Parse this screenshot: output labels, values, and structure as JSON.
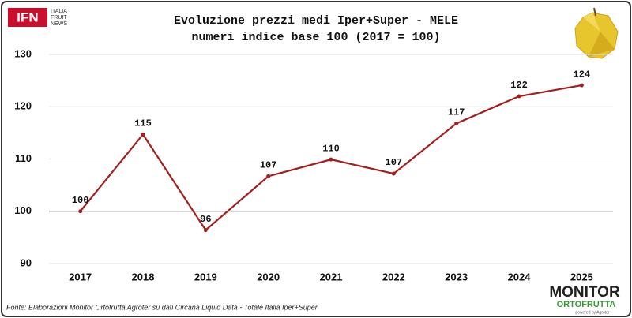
{
  "chart_data": {
    "type": "line",
    "title": "Evoluzione prezzi medi Iper+Super - MELE",
    "subtitle": "numeri indice base 100 (2017 = 100)",
    "categories": [
      "2017",
      "2018",
      "2019",
      "2020",
      "2021",
      "2022",
      "2023",
      "2024",
      "2025"
    ],
    "series": [
      {
        "name": "MELE",
        "color": "#a31f1f",
        "values": [
          100,
          114.7,
          96.4,
          106.7,
          109.9,
          107.2,
          116.8,
          122,
          124.1
        ],
        "value_labels": [
          "100",
          "115",
          "96",
          "107",
          "110",
          "107",
          "117",
          "122",
          "124"
        ]
      }
    ],
    "ylim": [
      90,
      130
    ],
    "yticks": [
      90,
      100,
      110,
      120,
      130
    ],
    "grid": true,
    "baseline": 100,
    "source": "Fonte: Elaborazioni Monitor Ortofrutta Agroter su dati Circana Liquid Data - Totale Italia Iper+Super"
  },
  "logos": {
    "ifn": "IFN",
    "ifn_lines": [
      "ITALIA",
      "FRUIT",
      "NEWS"
    ],
    "monitor": "MONITOR",
    "ortofrutta": "ORTOFRUTTA",
    "powered": "powered by Agroter"
  }
}
